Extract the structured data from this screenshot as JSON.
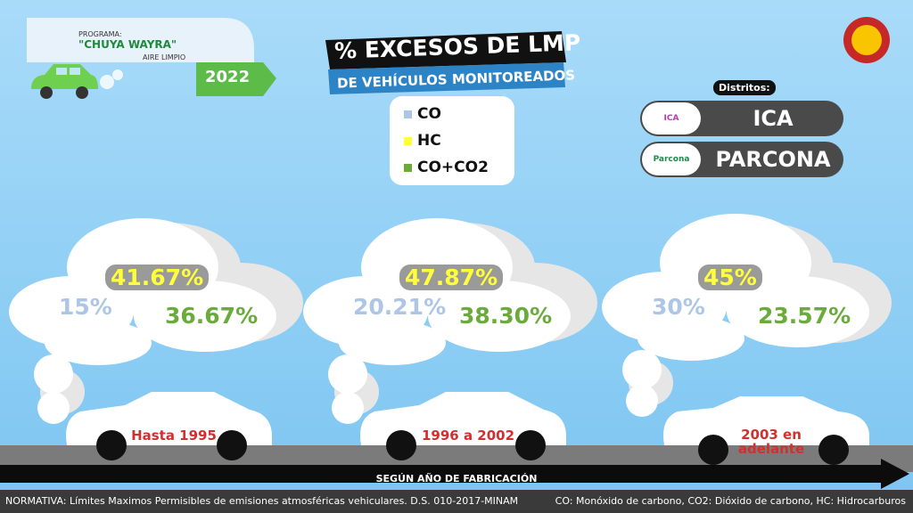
{
  "program": {
    "label": "PROGRAMA:",
    "name": "\"CHUYA WAYRA\"",
    "subtitle": "AIRE LIMPIO",
    "year": "2022"
  },
  "title": "% EXCESOS DE LMP",
  "subtitle": "DE VEHÍCULOS MONITOREADOS",
  "legend": [
    {
      "name": "CO",
      "color": "#aec6e6"
    },
    {
      "name": "HC",
      "color": "#ffff3a"
    },
    {
      "name": "CO+CO2",
      "color": "#6aab3c"
    }
  ],
  "districts": {
    "label": "Distritos:",
    "items": [
      {
        "name": "ICA",
        "logo": "ICA"
      },
      {
        "name": "PARCONA",
        "logo": "Parcona"
      }
    ]
  },
  "groups": [
    {
      "period": "Hasta 1995",
      "co": "15%",
      "hc": "41.67%",
      "co_co2": "36.67%"
    },
    {
      "period": "1996 a 2002",
      "co": "20.21%",
      "hc": "47.87%",
      "co_co2": "38.30%"
    },
    {
      "period": "2003 en adelante",
      "co": "30%",
      "hc": "45%",
      "co_co2": "23.57%"
    }
  ],
  "axis_label": "SEGÚN AÑO DE FABRICACIÓN",
  "footer": {
    "normativa": "NORMATIVA: Límites Maximos Permisibles de emisiones atmosféricas vehiculares. D.S. 010-2017-MINAM",
    "abbreviations": "CO: Monóxido de carbono, CO2: Dióxido de carbono, HC: Hidrocarburos"
  }
}
